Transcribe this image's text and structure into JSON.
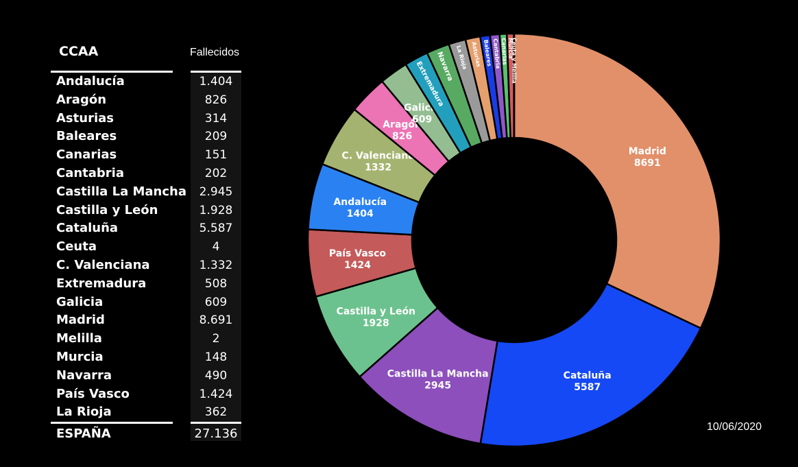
{
  "table": {
    "header_name": "CCAA",
    "header_value": "Fallecidos",
    "rows": [
      {
        "name": "Andalucía",
        "value": "1.404"
      },
      {
        "name": "Aragón",
        "value": "826"
      },
      {
        "name": "Asturias",
        "value": "314"
      },
      {
        "name": "Baleares",
        "value": "209"
      },
      {
        "name": "Canarias",
        "value": "151"
      },
      {
        "name": "Cantabria",
        "value": "202"
      },
      {
        "name": "Castilla La Mancha",
        "value": "2.945"
      },
      {
        "name": "Castilla y León",
        "value": "1.928"
      },
      {
        "name": "Cataluña",
        "value": "5.587"
      },
      {
        "name": "Ceuta",
        "value": "4"
      },
      {
        "name": "C. Valenciana",
        "value": "1.332"
      },
      {
        "name": "Extremadura",
        "value": "508"
      },
      {
        "name": "Galicia",
        "value": "609"
      },
      {
        "name": "Madrid",
        "value": "8.691"
      },
      {
        "name": "Melilla",
        "value": "2"
      },
      {
        "name": "Murcia",
        "value": "148"
      },
      {
        "name": "Navarra",
        "value": "490"
      },
      {
        "name": "País Vasco",
        "value": "1.424"
      },
      {
        "name": "La Rioja",
        "value": "362"
      }
    ],
    "total": {
      "name": "ESPAÑA",
      "value": "27.136"
    }
  },
  "date": "10/06/2020",
  "chart_data": {
    "type": "pie",
    "donut": true,
    "slices": [
      {
        "label": "Madrid",
        "value": 8691,
        "show_value": true,
        "color": "#e2906a"
      },
      {
        "label": "Cataluña",
        "value": 5587,
        "show_value": true,
        "color": "#1549f5"
      },
      {
        "label": "Castilla La Mancha",
        "value": 2945,
        "show_value": true,
        "color": "#8c4fbb"
      },
      {
        "label": "Castilla y León",
        "value": 1928,
        "show_value": true,
        "color": "#6cc28e"
      },
      {
        "label": "País Vasco",
        "value": 1424,
        "show_value": true,
        "color": "#c55a5a"
      },
      {
        "label": "Andalucía",
        "value": 1404,
        "show_value": true,
        "color": "#2a82f2"
      },
      {
        "label": "C. Valenciana",
        "value": 1332,
        "show_value": true,
        "color": "#a4b470"
      },
      {
        "label": "Aragón",
        "value": 826,
        "show_value": true,
        "color": "#ec73b4"
      },
      {
        "label": "Galicia",
        "value": 609,
        "show_value": true,
        "color": "#94be92"
      },
      {
        "label": "Extremadura",
        "value": 508,
        "show_value": false,
        "color": "#229fbc"
      },
      {
        "label": "Navarra",
        "value": 490,
        "show_value": false,
        "color": "#58aa62"
      },
      {
        "label": "La Rioja",
        "value": 362,
        "show_value": false,
        "color": "#9a9a9a"
      },
      {
        "label": "Asturias",
        "value": 314,
        "show_value": false,
        "color": "#e6a06e"
      },
      {
        "label": "Baleares",
        "value": 209,
        "show_value": false,
        "color": "#1a3ce6"
      },
      {
        "label": "Cantabria",
        "value": 202,
        "show_value": false,
        "color": "#8e58c8"
      },
      {
        "label": "Canarias",
        "value": 151,
        "show_value": false,
        "color": "#5ac06c"
      },
      {
        "label": "Murcia",
        "value": 148,
        "show_value": false,
        "color": "#d25c5c"
      },
      {
        "label": "Ceuta y Melilla",
        "value": 6,
        "show_value": false,
        "color": "#b06060"
      }
    ]
  }
}
